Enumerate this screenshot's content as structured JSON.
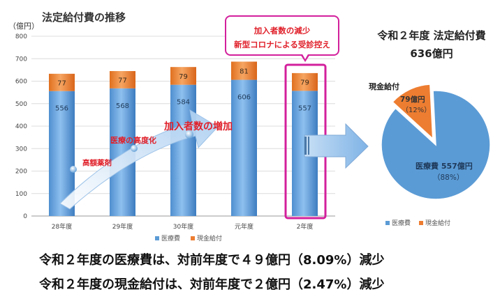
{
  "title": "法定給付費の推移",
  "y_unit": "（億円）",
  "callout": {
    "line1": "加入者数の減少",
    "line2": "新型コロナによる受診控え"
  },
  "annotations": {
    "trend_arrow": "加入者数の増加",
    "point1": "高額薬剤",
    "point2": "医療の高度化"
  },
  "pie": {
    "title_line1": "令和２年度 法定給付費",
    "title_line2": "636億円",
    "label_cash": "現金給付",
    "cash_value": "79億円",
    "cash_pct": "（12%）",
    "medical_value": "医療費 557億円",
    "medical_pct": "（88%）",
    "legend_medical": "医療費",
    "legend_cash": "現金給付",
    "values": [
      557,
      79
    ]
  },
  "summary": {
    "line1": "令和２年度の医療費は、対前年度で４９億円（8.09%）減少",
    "line2": "令和２年度の現金給付は、対前年度で２億円（2.47%）減少"
  },
  "colors": {
    "medical": "#5b9bd5",
    "cash": "#ed7d31",
    "highlight": "#d3209c",
    "annotation_red": "#e0202a"
  },
  "chart_data": [
    {
      "type": "bar",
      "stacked": true,
      "title": "法定給付費の推移",
      "ylabel": "（億円）",
      "categories": [
        "28年度",
        "29年度",
        "30年度",
        "元年度",
        "2年度"
      ],
      "series": [
        {
          "name": "医療費",
          "values": [
            556,
            568,
            584,
            606,
            557
          ]
        },
        {
          "name": "現金給付",
          "values": [
            77,
            77,
            79,
            81,
            79
          ]
        }
      ],
      "ylim": [
        0,
        800
      ],
      "yticks": [
        "0",
        "100",
        "200",
        "300",
        "400",
        "500",
        "600",
        "700",
        "800"
      ],
      "grid": true,
      "legend": "bottom"
    },
    {
      "type": "pie",
      "title": "令和２年度 法定給付費 636億円",
      "categories": [
        "医療費",
        "現金給付"
      ],
      "values": [
        557,
        79
      ],
      "legend": "bottom"
    }
  ]
}
